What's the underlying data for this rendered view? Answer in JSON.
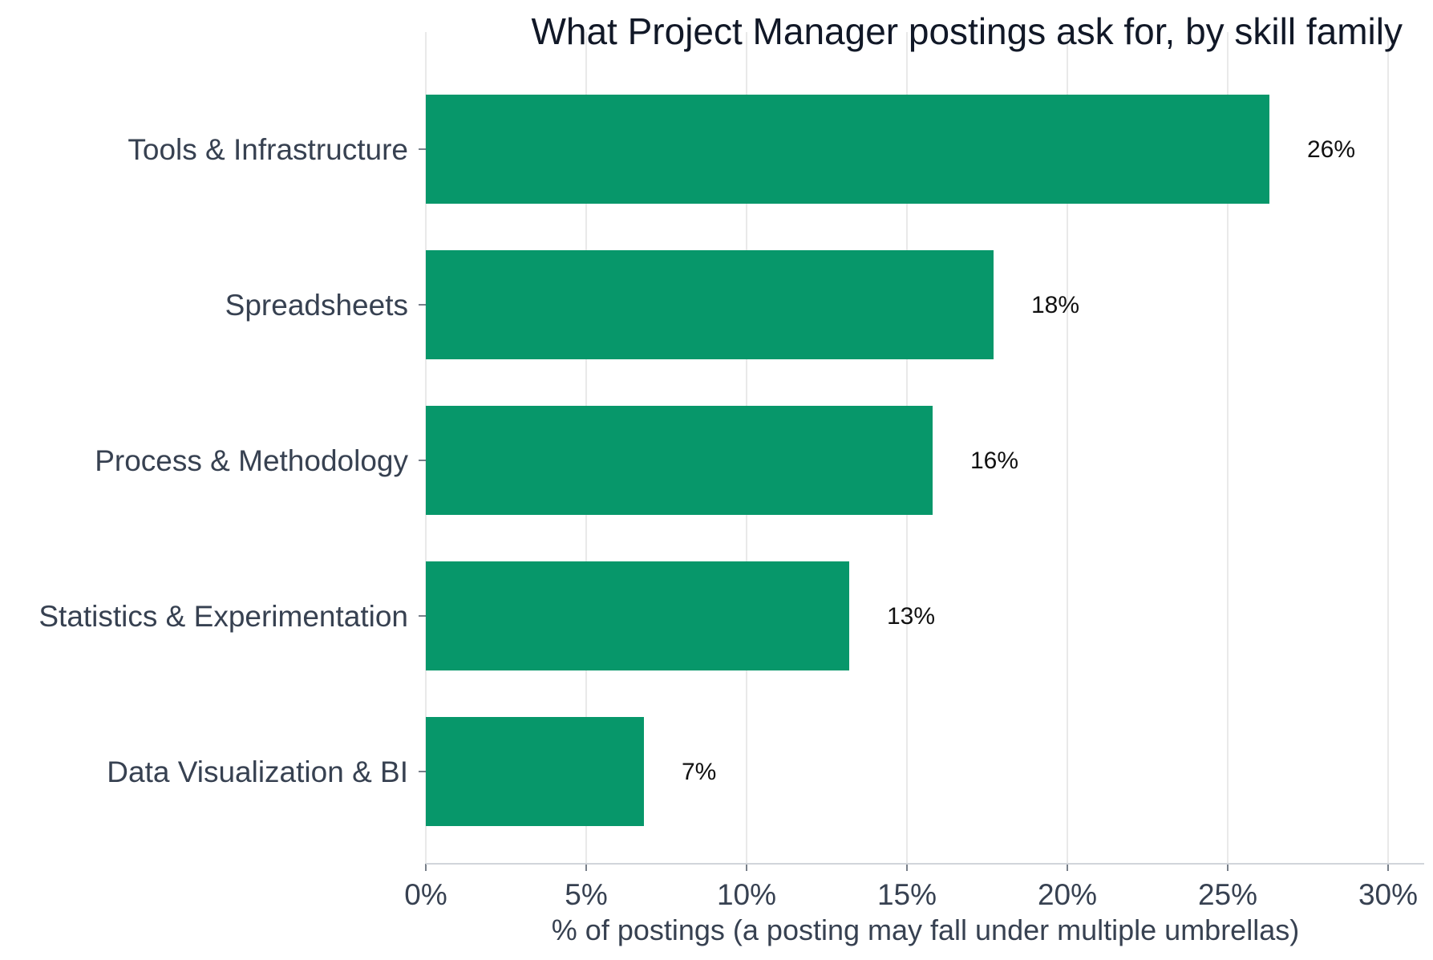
{
  "chart_data": {
    "type": "bar",
    "orientation": "horizontal",
    "title": "What Project Manager postings ask for, by skill family",
    "xlabel": "% of postings (a posting may fall under multiple umbrellas)",
    "ylabel": "",
    "categories": [
      "Tools & Infrastructure",
      "Spreadsheets",
      "Process & Methodology",
      "Statistics & Experimentation",
      "Data Visualization & BI"
    ],
    "values": [
      26.3,
      17.7,
      15.8,
      13.2,
      6.8
    ],
    "data_labels": [
      "26%",
      "18%",
      "16%",
      "13%",
      "7%"
    ],
    "xlim": [
      0,
      31
    ],
    "x_ticks": [
      0,
      5,
      10,
      15,
      20,
      25,
      30
    ],
    "x_tick_labels": [
      "0%",
      "5%",
      "10%",
      "15%",
      "20%",
      "25%",
      "30%"
    ],
    "grid": "vertical",
    "bar_color": "#07976a",
    "grid_color": "#e9e9e9",
    "axis_color": "#d1d5db"
  }
}
